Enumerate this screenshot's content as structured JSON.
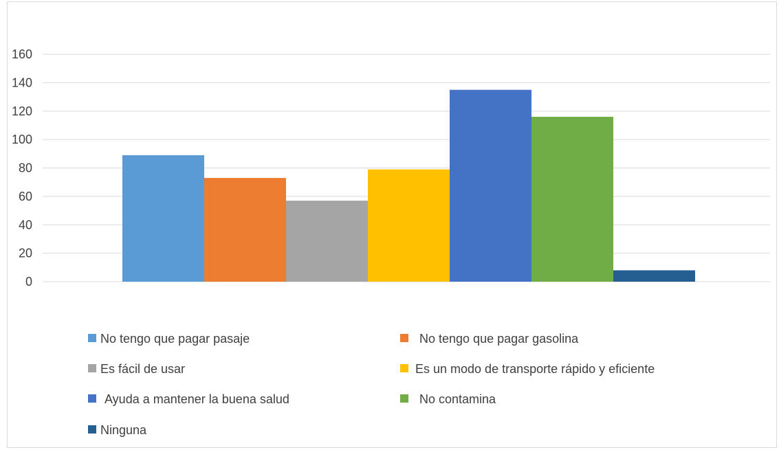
{
  "chart_data": {
    "type": "bar",
    "title": "",
    "xlabel": "",
    "ylabel": "",
    "ylim": [
      0,
      160
    ],
    "yticks": [
      0,
      20,
      40,
      60,
      80,
      100,
      120,
      140,
      160
    ],
    "grid": true,
    "legend_position": "bottom",
    "series": [
      {
        "name": "No tengo que pagar pasaje",
        "value": 89,
        "color": "#5b9bd5"
      },
      {
        "name": "No tengo que pagar gasolina",
        "value": 73,
        "color": "#ed7d31"
      },
      {
        "name": "Es fácil de usar",
        "value": 57,
        "color": "#a5a5a5"
      },
      {
        "name": "Es un modo de transporte rápido y eficiente",
        "value": 79,
        "color": "#ffc000"
      },
      {
        "name": "Ayuda a mantener la buena salud",
        "value": 135,
        "color": "#4472c4"
      },
      {
        "name": "No contamina",
        "value": 116,
        "color": "#70ad47"
      },
      {
        "name": "Ninguna",
        "value": 8,
        "color": "#255e91"
      }
    ]
  }
}
